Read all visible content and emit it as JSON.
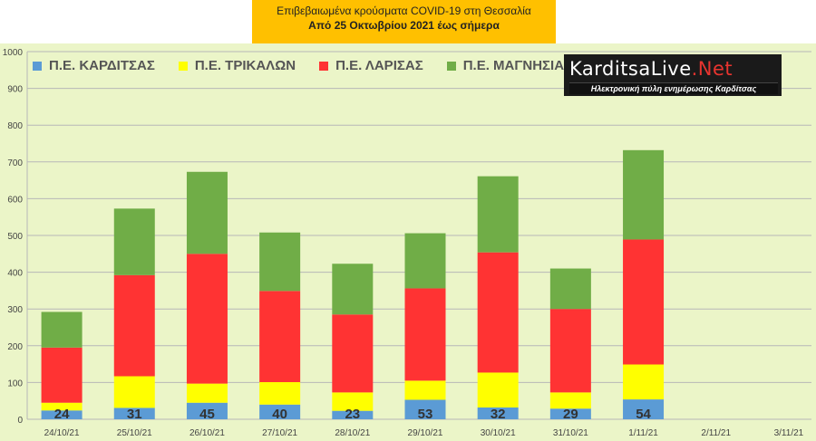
{
  "header": {
    "line1": "Επιβεβαιωμένα κρούσματα COVID-19 στη Θεσσαλία",
    "line2": "Από 25 Οκτωβρίου 2021 έως σήμερα"
  },
  "logo": {
    "text_main": "KarditsaLive",
    "text_suffix": ".Net",
    "tagline": "Ηλεκτρονική πύλη ενημέρωσης Καρδίτσας"
  },
  "colors": {
    "plot_bg": "#ebf5c8",
    "grid": "#b7b7b7",
    "karditsa": "#5b9bd5",
    "trikala": "#ffff00",
    "larisa": "#ff3333",
    "magnisia": "#70ad47",
    "label_text": "#333333"
  },
  "chart_data": {
    "type": "bar",
    "stacked": true,
    "title": "",
    "xlabel": "",
    "ylabel": "",
    "ylim": [
      0,
      1000
    ],
    "yticks": [
      0,
      100,
      200,
      300,
      400,
      500,
      600,
      700,
      800,
      900,
      1000
    ],
    "grid": true,
    "legend_position": "top-left",
    "categories": [
      "24/10/21",
      "25/10/21",
      "26/10/21",
      "27/10/21",
      "28/10/21",
      "29/10/21",
      "30/10/21",
      "31/10/21",
      "1/11/21",
      "2/11/21",
      "3/11/21"
    ],
    "series": [
      {
        "name": "Π.Ε. ΚΑΡΔΙΤΣΑΣ",
        "color_key": "karditsa",
        "values": [
          24,
          31,
          45,
          40,
          23,
          53,
          32,
          29,
          54,
          null,
          null
        ]
      },
      {
        "name": "Π.Ε. ΤΡΙΚΑΛΩΝ",
        "color_key": "trikala",
        "values": [
          21,
          86,
          52,
          61,
          50,
          52,
          95,
          44,
          95,
          null,
          null
        ]
      },
      {
        "name": "Π.Ε. ΛΑΡΙΣΑΣ",
        "color_key": "larisa",
        "values": [
          150,
          275,
          353,
          248,
          212,
          251,
          327,
          227,
          340,
          null,
          null
        ]
      },
      {
        "name": "Π.Ε. ΜΑΓΝΗΣΙΑΣ",
        "color_key": "magnisia",
        "values": [
          97,
          181,
          223,
          159,
          138,
          150,
          207,
          110,
          243,
          null,
          null
        ]
      }
    ],
    "data_labels": [
      "24",
      "31",
      "45",
      "40",
      "23",
      "53",
      "32",
      "29",
      "54",
      "",
      ""
    ]
  }
}
